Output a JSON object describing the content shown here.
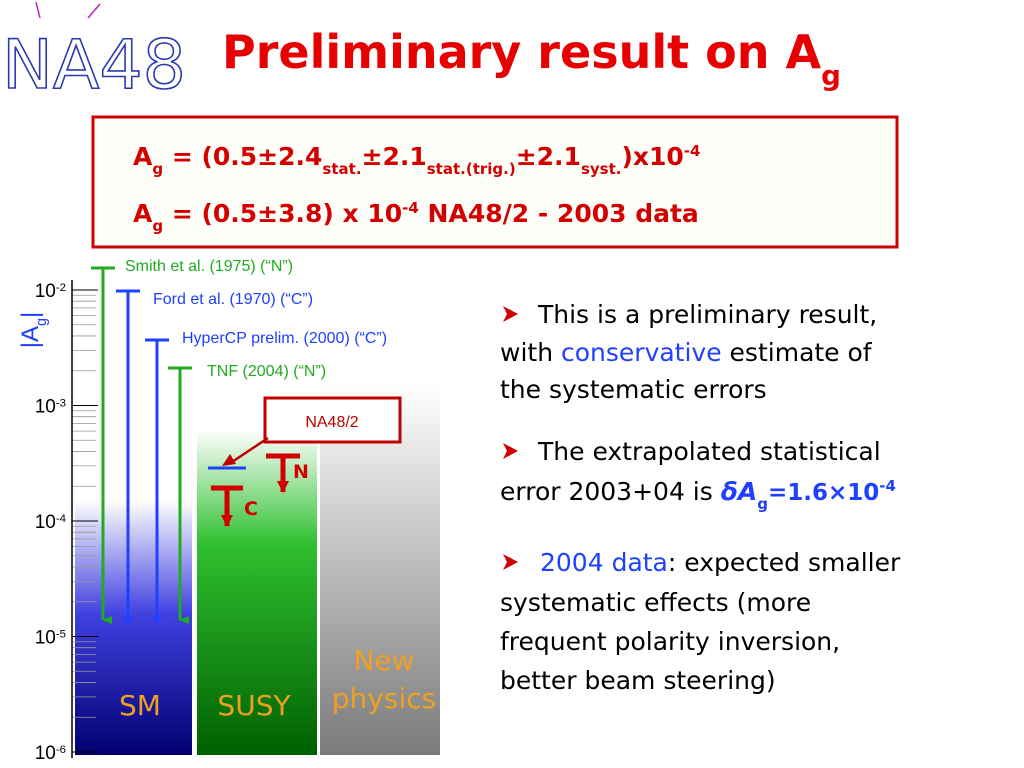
{
  "logo": "NA48",
  "title": [
    "Preliminary result on A",
    "g"
  ],
  "result_box": {
    "line1": [
      "A",
      "g",
      " = (0.5±2.4",
      "stat.",
      "±2.1",
      "stat.(trig.)",
      "±2.1",
      "syst.",
      ")x10",
      "-4"
    ],
    "line2": [
      "A",
      "g",
      " = (0.5±3.8) x 10",
      "-4",
      " NA48/2 - 2003 data"
    ]
  },
  "axis": {
    "label": [
      "|A",
      "g",
      "|"
    ],
    "ticks": [
      [
        "10",
        "-2"
      ],
      [
        "10",
        "-3"
      ],
      [
        "10",
        "-4"
      ],
      [
        "10",
        "-5"
      ],
      [
        "10",
        "-6"
      ]
    ]
  },
  "measurements": [
    "Smith et al. (1975) (“N”)",
    "Ford et al. (1970) (“C”)",
    "HyperCP prelim. (2000) (“C”)",
    "TNF (2004) (“N”)"
  ],
  "na48": {
    "label": "NA48/2",
    "charged": "C",
    "neutral": "N"
  },
  "regions": [
    "SM",
    "SUSY",
    [
      "New",
      "physics"
    ]
  ],
  "bullets": [
    [
      "This is a preliminary result,",
      "with ",
      "conservative",
      " estimate of",
      "the systematic errors"
    ],
    [
      "The extrapolated statistical",
      "error 2003+04 is ",
      "δA",
      "g",
      "=1.6×10",
      "-4"
    ],
    [
      "2004 data",
      ": expected smaller",
      "systematic effects (more",
      "frequent polarity inversion,",
      "better beam steering)"
    ]
  ]
}
